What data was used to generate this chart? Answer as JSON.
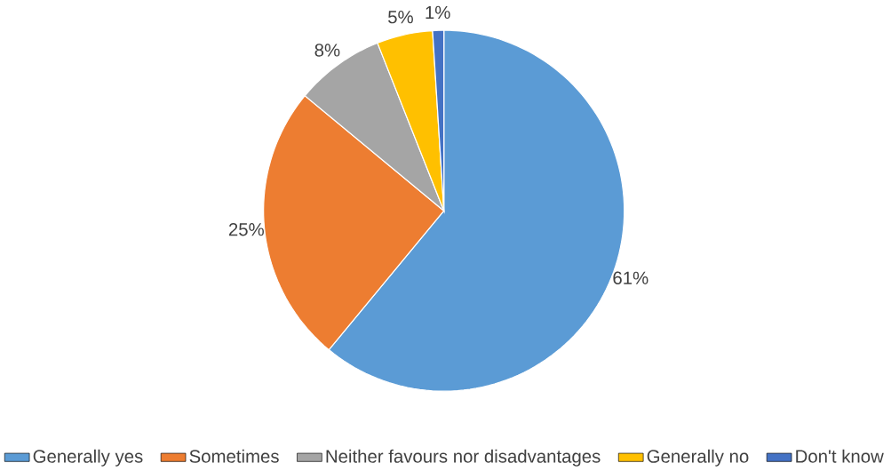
{
  "chart_data": {
    "type": "pie",
    "categories": [
      "Generally yes",
      "Sometimes",
      "Neither favours nor disadvantages",
      "Generally no",
      "Don't know"
    ],
    "values": [
      61,
      25,
      8,
      5,
      1
    ],
    "colors": [
      "#5b9bd5",
      "#ed7d31",
      "#a5a5a5",
      "#ffc000",
      "#4472c4"
    ],
    "value_labels": [
      "61%",
      "25%",
      "8%",
      "5%",
      "1%"
    ],
    "legend": "bottom"
  }
}
